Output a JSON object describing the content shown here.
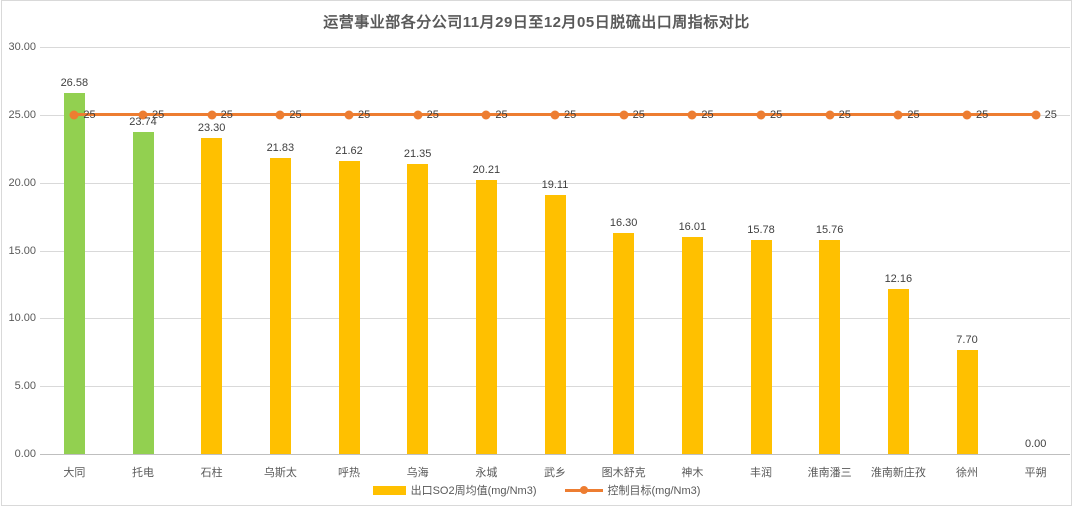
{
  "title": "运营事业部各分公司11月29日至12月05日脱硫出口周指标对比",
  "chart_data": {
    "type": "bar",
    "title": "运营事业部各分公司11月29日至12月05日脱硫出口周指标对比",
    "categories": [
      "大同",
      "托电",
      "石柱",
      "乌斯太",
      "呼热",
      "乌海",
      "永城",
      "武乡",
      "图木舒克",
      "神木",
      "丰润",
      "淮南潘三",
      "淮南新庄孜",
      "徐州",
      "平朔"
    ],
    "series": [
      {
        "name": "出口SO2周均值(mg/Nm3)",
        "type": "bar",
        "values": [
          26.58,
          23.74,
          23.3,
          21.83,
          21.62,
          21.35,
          20.21,
          19.11,
          16.3,
          16.01,
          15.78,
          15.76,
          12.16,
          7.7,
          0.0
        ],
        "value_labels": [
          "26.58",
          "23.74",
          "23.30",
          "21.83",
          "21.62",
          "21.35",
          "20.21",
          "19.11",
          "16.30",
          "16.01",
          "15.78",
          "15.76",
          "12.16",
          "7.70",
          "0.00"
        ],
        "bar_colors": [
          "#92D050",
          "#92D050",
          "#FFC000",
          "#FFC000",
          "#FFC000",
          "#FFC000",
          "#FFC000",
          "#FFC000",
          "#FFC000",
          "#FFC000",
          "#FFC000",
          "#FFC000",
          "#FFC000",
          "#FFC000",
          "#FFC000"
        ]
      },
      {
        "name": "控制目标(mg/Nm3)",
        "type": "line",
        "values": [
          25,
          25,
          25,
          25,
          25,
          25,
          25,
          25,
          25,
          25,
          25,
          25,
          25,
          25,
          25
        ],
        "value_labels": [
          "25",
          "25",
          "25",
          "25",
          "25",
          "25",
          "25",
          "25",
          "25",
          "25",
          "25",
          "25",
          "25",
          "25",
          "25"
        ],
        "color": "#ED7D31"
      }
    ],
    "ylim": [
      0,
      30
    ],
    "yticks": [
      0,
      5,
      10,
      15,
      20,
      25,
      30
    ],
    "ytick_labels": [
      "0.00",
      "5.00",
      "10.00",
      "15.00",
      "20.00",
      "25.00",
      "30.00"
    ],
    "grid": true,
    "legend_position": "bottom"
  },
  "colors": {
    "bar_yellow": "#FFC000",
    "bar_green": "#92D050",
    "line_orange": "#ED7D31",
    "gridline": "#D9D9D9",
    "axis_line": "#BFBFBF",
    "axis_text": "#595959",
    "value_text": "#404040",
    "title_text": "#595959",
    "border": "#D9D9D9"
  }
}
